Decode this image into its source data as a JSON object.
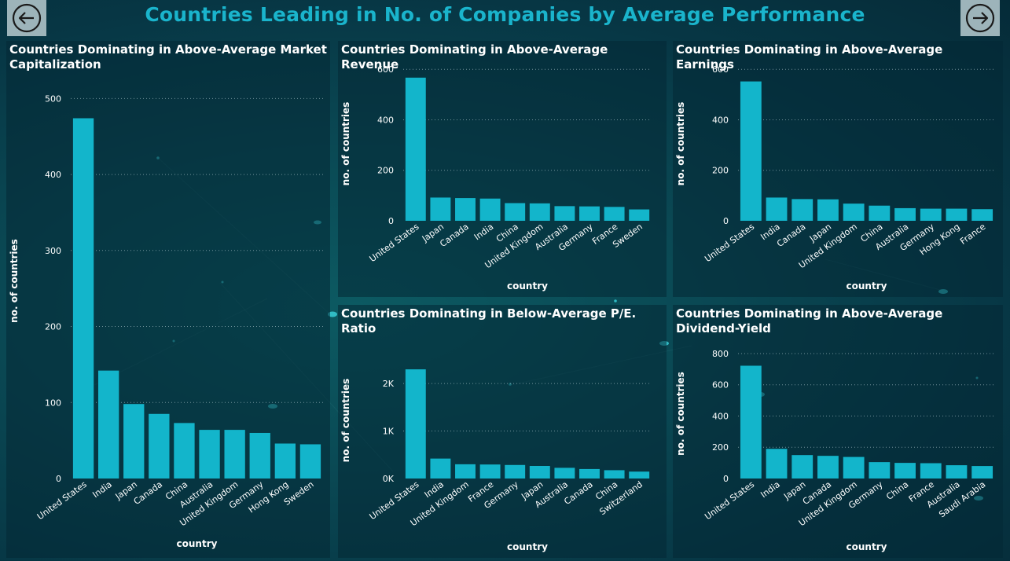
{
  "header": {
    "title": "Countries Leading in No. of Companies by Average Performance",
    "prev_icon": "arrow-left-circle-icon",
    "next_icon": "arrow-right-circle-icon"
  },
  "colors": {
    "bar": "#13b5cb",
    "title": "#1ab4cc",
    "text": "#ffffff"
  },
  "chart_data": [
    {
      "id": "market-cap",
      "type": "bar",
      "title": "Countries Dominating in Above-Average Market Capitalization",
      "title_lines": [
        "Countries Dominating in Above-Average Market",
        "Capitalization"
      ],
      "xlabel": "country",
      "ylabel": "no. of countries",
      "categories": [
        "United States",
        "India",
        "Japan",
        "Canada",
        "China",
        "Australia",
        "United Kingdom",
        "Germany",
        "Hong Kong",
        "Sweden"
      ],
      "values": [
        474,
        142,
        98,
        85,
        73,
        64,
        64,
        60,
        46,
        45
      ],
      "ylim": [
        0,
        520
      ],
      "yticks": [
        0,
        100,
        200,
        300,
        400,
        500
      ],
      "ytick_labels": [
        "0",
        "100",
        "200",
        "300",
        "400",
        "500"
      ],
      "grid": true
    },
    {
      "id": "revenue",
      "type": "bar",
      "title": "Countries Dominating in Above-Average Revenue",
      "title_lines": [
        "Countries Dominating in Above-Average Revenue"
      ],
      "xlabel": "country",
      "ylabel": "no. of countries",
      "categories": [
        "United States",
        "Japan",
        "Canada",
        "India",
        "China",
        "United Kingdom",
        "Australia",
        "Germany",
        "France",
        "Sweden"
      ],
      "values": [
        567,
        92,
        90,
        88,
        70,
        69,
        58,
        57,
        55,
        45
      ],
      "ylim": [
        0,
        610
      ],
      "yticks": [
        0,
        200,
        400,
        600
      ],
      "ytick_labels": [
        "0",
        "200",
        "400",
        "600"
      ],
      "grid": true
    },
    {
      "id": "earnings",
      "type": "bar",
      "title": "Countries Dominating in Above-Average Earnings",
      "title_lines": [
        "Countries Dominating in Above-Average Earnings"
      ],
      "xlabel": "country",
      "ylabel": "no. of countries",
      "categories": [
        "United States",
        "India",
        "Canada",
        "Japan",
        "United Kingdom",
        "China",
        "Australia",
        "Germany",
        "Hong Kong",
        "France"
      ],
      "values": [
        552,
        92,
        86,
        85,
        68,
        60,
        50,
        48,
        48,
        46
      ],
      "ylim": [
        0,
        610
      ],
      "yticks": [
        0,
        200,
        400,
        600
      ],
      "ytick_labels": [
        "0",
        "200",
        "400",
        "600"
      ],
      "grid": true
    },
    {
      "id": "pe-ratio",
      "type": "bar",
      "title": "Countries Dominating in Below-Average P/E. Ratio",
      "title_lines": [
        "Countries Dominating in Below-Average P/E. Ratio"
      ],
      "xlabel": "country",
      "ylabel": "no. of countries",
      "categories": [
        "United States",
        "India",
        "United Kingdom",
        "France",
        "Germany",
        "Japan",
        "Australia",
        "Canada",
        "China",
        "Switzerland"
      ],
      "values": [
        2300,
        420,
        300,
        295,
        285,
        265,
        225,
        200,
        175,
        145
      ],
      "ylim": [
        0,
        2450
      ],
      "yticks": [
        0,
        1000,
        2000
      ],
      "ytick_labels": [
        "0K",
        "1K",
        "2K"
      ],
      "grid": true
    },
    {
      "id": "dividend",
      "type": "bar",
      "title": "Countries Dominating in Above-Average Dividend-Yield",
      "title_lines": [
        "Countries Dominating in Above-Average",
        "Dividend-Yield"
      ],
      "xlabel": "country",
      "ylabel": "no. of countries",
      "categories": [
        "United States",
        "India",
        "Japan",
        "Canada",
        "United Kingdom",
        "Germany",
        "China",
        "France",
        "Australia",
        "Saudi Arabia"
      ],
      "values": [
        722,
        190,
        150,
        145,
        138,
        105,
        100,
        98,
        85,
        80
      ],
      "ylim": [
        0,
        830
      ],
      "yticks": [
        0,
        200,
        400,
        600,
        800
      ],
      "ytick_labels": [
        "0",
        "200",
        "400",
        "600",
        "800"
      ],
      "grid": true
    }
  ]
}
